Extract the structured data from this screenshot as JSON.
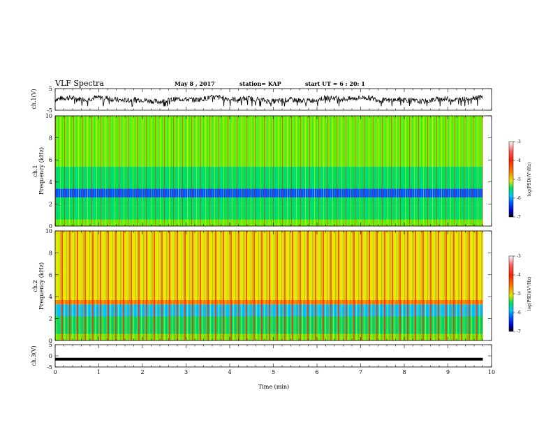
{
  "header": {
    "title": "VLF Spectra",
    "date": "May 8 , 2017",
    "station": "station= KAP",
    "start": "start UT = 6 : 20: 1"
  },
  "colors": {
    "line": "#000000",
    "colormap": [
      "#000000",
      "#0000cc",
      "#0050ff",
      "#00c8ff",
      "#00e060",
      "#70f000",
      "#e8e800",
      "#ff8000",
      "#ff2000",
      "#ffffff"
    ]
  },
  "chart_data": [
    {
      "type": "line",
      "ylabel": "ch.1(V)",
      "ylim": [
        -5,
        5
      ],
      "yticks": [
        "5",
        "-5"
      ],
      "xlim": [
        0,
        10
      ],
      "grid": false,
      "series": [
        {
          "values": "noisy waveform roughly between -3 and +2.5 V, centered near 0"
        }
      ]
    },
    {
      "type": "heatmap",
      "ylabel": "ch.1\nFrequency (kHz)",
      "ylim": [
        0,
        10
      ],
      "yticks": [
        "0",
        "2",
        "4",
        "6",
        "8",
        "10"
      ],
      "xlim": [
        0,
        9.8
      ],
      "colorbar": {
        "label": "log(PSD)(V²/Hz)",
        "range": [
          -7,
          -3
        ],
        "ticks": [
          "-3",
          "-4",
          "-5",
          "-6",
          "-7"
        ]
      },
      "bands": [
        {
          "kHz": [
            0,
            0.6
          ],
          "log_psd": -4.6
        },
        {
          "kHz": [
            0.6,
            1.8
          ],
          "log_psd": -5.2
        },
        {
          "kHz": [
            1.8,
            2.6
          ],
          "log_psd": -5.0
        },
        {
          "kHz": [
            2.6,
            3.4
          ],
          "log_psd": -5.9
        },
        {
          "kHz": [
            3.4,
            5.4
          ],
          "log_psd": -4.8
        },
        {
          "kHz": [
            5.4,
            10
          ],
          "log_psd": -4.3
        }
      ]
    },
    {
      "type": "heatmap",
      "ylabel": "ch.2\nFrequency (kHz)",
      "ylim": [
        0,
        10
      ],
      "yticks": [
        "0",
        "2",
        "4",
        "6",
        "8",
        "10"
      ],
      "xlim": [
        0,
        9.8
      ],
      "colorbar": {
        "label": "log(PSD)(V²/Hz)",
        "range": [
          -7,
          -3
        ],
        "ticks": [
          "-3",
          "-4",
          "-5",
          "-6",
          "-7"
        ]
      },
      "bands": [
        {
          "kHz": [
            0,
            0.6
          ],
          "log_psd": -4.6
        },
        {
          "kHz": [
            0.6,
            2.2
          ],
          "log_psd": -5.1
        },
        {
          "kHz": [
            2.2,
            3.3
          ],
          "log_psd": -5.5
        },
        {
          "kHz": [
            3.3,
            3.7
          ],
          "log_psd": -3.6
        },
        {
          "kHz": [
            3.7,
            10
          ],
          "log_psd": -3.9
        }
      ]
    },
    {
      "type": "line",
      "ylabel": "ch.3(V)",
      "ylim": [
        -5,
        5
      ],
      "yticks": [
        "5",
        "0",
        "-5"
      ],
      "xlim": [
        0,
        10
      ],
      "xlabel": "Time (min)",
      "xticks": [
        "0",
        "1",
        "2",
        "3",
        "4",
        "5",
        "6",
        "7",
        "8",
        "9",
        "10"
      ],
      "series": [
        {
          "values": "flat line at about -1.5 V"
        }
      ]
    }
  ]
}
